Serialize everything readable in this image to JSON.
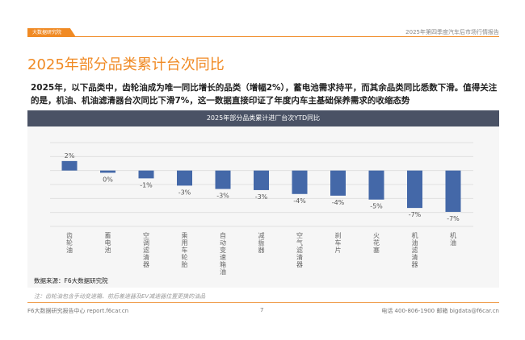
{
  "header": {
    "logo": "大数据研究院",
    "report": "2025年第四季度汽车后市场行情报告"
  },
  "title": "2025年部分品类累计台次同比",
  "description": "2025年，以下品类中，齿轮油成为唯一同比增长的品类（增幅2%），蓄电池需求持平，而其余品类同比悉数下滑。值得关注的是，机油、机油滤清器台次同比下滑7%，这一数据直接印证了年度内车主基础保养需求的收缩态势",
  "chart_data": {
    "type": "bar",
    "title": "2025年部分品类累计进厂台次YTD同比",
    "categories": [
      "齿轮油",
      "蓄电池",
      "空调滤清器",
      "乘用车轮胎",
      "自动变速箱油",
      "减振器",
      "空气滤清器",
      "刹车片",
      "火花塞",
      "机油滤清器",
      "机油"
    ],
    "values": [
      1.7,
      -0.4,
      -1.4,
      -2.7,
      -3.3,
      -3.5,
      -4.2,
      -4.5,
      -5.2,
      -6.7,
      -7.4
    ],
    "labels": [
      "2%",
      "0%",
      "-1%",
      "-3%",
      "-3%",
      "-3%",
      "-4%",
      "-4%",
      "-5%",
      "-7%",
      "-7%"
    ],
    "ylim": [
      -10,
      5
    ],
    "grid": true,
    "bar_color": "#4468a8"
  },
  "source": "数据来源：F6大数据研究院",
  "note": "注：齿轮油包含手动变速箱、前后差速器及EV减速器位置更换的油品",
  "footer": {
    "left": "F6大数据研究报告中心 report.f6car.cn",
    "page": "7",
    "right": "电话 400-806-1900  邮箱 bigdata@f6car.cn"
  },
  "colors": {
    "accent": "#f08a24",
    "header_bar": "#4a5265"
  }
}
